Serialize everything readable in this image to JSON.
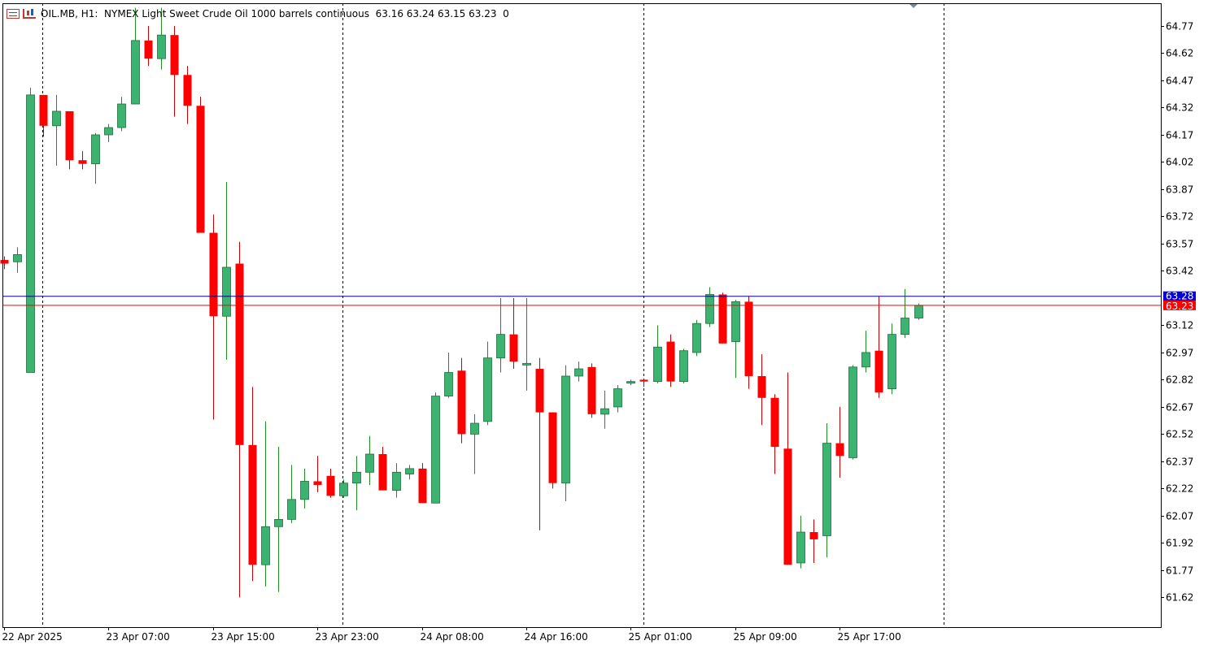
{
  "header": {
    "symbol_label": "OIL.MB, H1:",
    "description": "NYMEX Light Sweet Crude Oil 1000 barrels continuous",
    "ohlc": "63.16 63.24 63.15 63.23",
    "spread": "0"
  },
  "colors": {
    "bull": "#3cb371",
    "bear": "#ff0000",
    "wick_bull": "#228b22",
    "wick_bear": "#cc0000",
    "bid_line": "#ff0000",
    "ask_line": "#00008b",
    "bid_label_bg": "#ff0000",
    "ask_label_bg": "#0000e0",
    "axis_text": "#000000",
    "grid": "#000000"
  },
  "chart_data": {
    "type": "candlestick",
    "ylim": [
      61.5,
      64.85
    ],
    "y_ticks": [
      "64.77",
      "64.62",
      "64.47",
      "64.32",
      "64.17",
      "64.02",
      "63.87",
      "63.72",
      "63.57",
      "63.42",
      "63.12",
      "62.97",
      "62.82",
      "62.67",
      "62.52",
      "62.37",
      "62.22",
      "62.07",
      "61.92",
      "61.77",
      "61.62"
    ],
    "x_labels": [
      "22 Apr 2025",
      "23 Apr 07:00",
      "23 Apr 15:00",
      "23 Apr 23:00",
      "24 Apr 08:00",
      "24 Apr 16:00",
      "25 Apr 01:00",
      "25 Apr 09:00",
      "25 Apr 17:00"
    ],
    "x_label_bars": [
      0,
      8,
      16,
      24,
      32,
      40,
      48,
      56,
      64
    ],
    "day_separators_bars": [
      2,
      25,
      48,
      71
    ],
    "bid_price": "63.23",
    "ask_price": "63.28",
    "ohlc": [
      [
        63.48,
        63.5,
        63.43,
        63.46
      ],
      [
        63.47,
        63.55,
        63.41,
        63.51
      ],
      [
        62.86,
        64.43,
        62.86,
        64.39
      ],
      [
        64.39,
        64.39,
        64.16,
        64.22
      ],
      [
        64.22,
        64.39,
        64.0,
        64.3
      ],
      [
        64.3,
        64.3,
        63.98,
        64.03
      ],
      [
        64.03,
        64.08,
        63.98,
        64.01
      ],
      [
        64.01,
        64.18,
        63.9,
        64.17
      ],
      [
        64.17,
        64.23,
        64.13,
        64.21
      ],
      [
        64.21,
        64.38,
        64.19,
        64.34
      ],
      [
        64.34,
        64.87,
        64.34,
        64.69
      ],
      [
        64.69,
        64.77,
        64.55,
        64.59
      ],
      [
        64.59,
        64.87,
        64.53,
        64.72
      ],
      [
        64.72,
        64.77,
        64.27,
        64.5
      ],
      [
        64.5,
        64.55,
        64.23,
        64.33
      ],
      [
        64.33,
        64.38,
        63.63,
        63.63
      ],
      [
        63.63,
        63.73,
        62.6,
        63.17
      ],
      [
        63.17,
        63.91,
        62.93,
        63.44
      ],
      [
        63.46,
        63.58,
        61.62,
        62.46
      ],
      [
        62.46,
        62.78,
        61.71,
        61.8
      ],
      [
        61.8,
        62.59,
        61.68,
        62.01
      ],
      [
        62.01,
        62.45,
        61.65,
        62.05
      ],
      [
        62.05,
        62.35,
        62.03,
        62.16
      ],
      [
        62.16,
        62.33,
        62.11,
        62.26
      ],
      [
        62.26,
        62.4,
        62.2,
        62.24
      ],
      [
        62.29,
        62.33,
        62.17,
        62.18
      ],
      [
        62.18,
        62.27,
        62.17,
        62.25
      ],
      [
        62.25,
        62.4,
        62.1,
        62.31
      ],
      [
        62.31,
        62.51,
        62.24,
        62.41
      ],
      [
        62.41,
        62.45,
        62.22,
        62.21
      ],
      [
        62.21,
        62.36,
        62.17,
        62.31
      ],
      [
        62.3,
        62.35,
        62.27,
        62.33
      ],
      [
        62.33,
        62.36,
        62.14,
        62.14
      ],
      [
        62.14,
        62.75,
        62.14,
        62.73
      ],
      [
        62.73,
        62.97,
        62.72,
        62.86
      ],
      [
        62.87,
        62.94,
        62.47,
        62.52
      ],
      [
        62.52,
        62.63,
        62.3,
        62.58
      ],
      [
        62.59,
        63.03,
        62.57,
        62.94
      ],
      [
        62.94,
        63.27,
        62.86,
        63.07
      ],
      [
        63.07,
        63.27,
        62.88,
        62.92
      ],
      [
        62.91,
        63.27,
        62.76,
        62.91
      ],
      [
        62.88,
        62.94,
        61.99,
        62.64
      ],
      [
        62.64,
        62.64,
        62.22,
        62.25
      ],
      [
        62.25,
        62.9,
        62.15,
        62.84
      ],
      [
        62.84,
        62.92,
        62.81,
        62.88
      ],
      [
        62.89,
        62.91,
        62.61,
        62.63
      ],
      [
        62.63,
        62.76,
        62.55,
        62.66
      ],
      [
        62.67,
        62.79,
        62.64,
        62.77
      ],
      [
        62.81,
        62.82,
        62.79,
        62.81
      ],
      [
        62.82,
        62.82,
        62.78,
        62.81
      ],
      [
        62.81,
        63.12,
        62.8,
        63.0
      ],
      [
        63.03,
        63.07,
        62.78,
        62.81
      ],
      [
        62.81,
        62.99,
        62.8,
        62.98
      ],
      [
        62.97,
        63.15,
        62.95,
        63.13
      ],
      [
        63.13,
        63.33,
        63.11,
        63.29
      ],
      [
        63.29,
        63.3,
        63.02,
        63.02
      ],
      [
        63.03,
        63.26,
        62.83,
        63.25
      ],
      [
        63.25,
        63.28,
        62.77,
        62.84
      ],
      [
        62.84,
        62.96,
        62.57,
        62.72
      ],
      [
        62.72,
        62.74,
        62.3,
        62.45
      ],
      [
        62.44,
        62.86,
        61.8,
        61.8
      ],
      [
        61.81,
        62.07,
        61.78,
        61.98
      ],
      [
        61.98,
        62.05,
        61.81,
        61.94
      ],
      [
        61.96,
        62.58,
        61.84,
        62.47
      ],
      [
        62.47,
        62.67,
        62.28,
        62.4
      ],
      [
        62.39,
        62.9,
        62.38,
        62.89
      ],
      [
        62.89,
        63.09,
        62.86,
        62.97
      ],
      [
        62.98,
        63.28,
        62.72,
        62.75
      ],
      [
        62.77,
        63.13,
        62.74,
        63.07
      ],
      [
        63.07,
        63.32,
        63.05,
        63.16
      ],
      [
        63.16,
        63.24,
        63.15,
        63.23
      ]
    ]
  }
}
